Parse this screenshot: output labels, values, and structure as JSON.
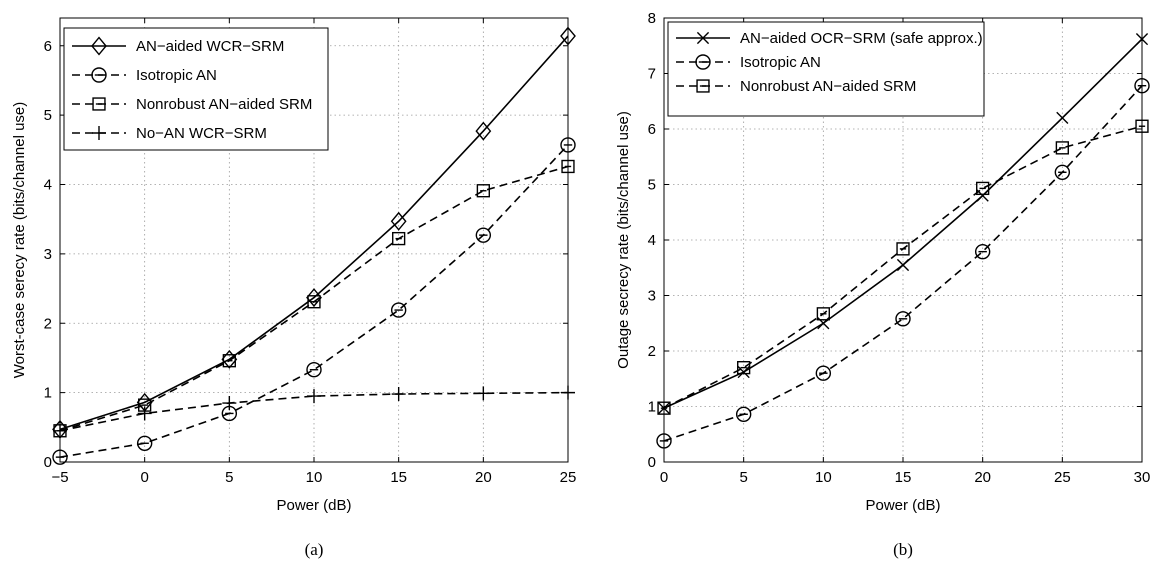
{
  "chart_data": [
    {
      "type": "line",
      "panel_label": "(a)",
      "xlabel": "Power (dB)",
      "ylabel": "Worst-case serecy rate (bits/channel use)",
      "xlim": [
        -5,
        25
      ],
      "ylim": [
        0,
        6.4
      ],
      "xticks": [
        -5,
        0,
        5,
        10,
        15,
        20,
        25
      ],
      "yticks": [
        0,
        1,
        2,
        3,
        4,
        5,
        6
      ],
      "grid": true,
      "legend_position": "top-left",
      "x": [
        -5,
        0,
        5,
        10,
        15,
        20,
        25
      ],
      "series": [
        {
          "name": "AN−aided WCR−SRM",
          "values": [
            0.47,
            0.86,
            1.48,
            2.37,
            3.47,
            4.77,
            6.14
          ],
          "line": "solid",
          "marker": "diamond"
        },
        {
          "name": "Isotropic AN",
          "values": [
            0.07,
            0.27,
            0.7,
            1.33,
            2.19,
            3.27,
            4.57
          ],
          "line": "dashed",
          "marker": "circle-minus"
        },
        {
          "name": "Nonrobust AN−aided SRM",
          "values": [
            0.45,
            0.82,
            1.46,
            2.31,
            3.22,
            3.91,
            4.26
          ],
          "line": "dashed",
          "marker": "square"
        },
        {
          "name": "No−AN WCR−SRM",
          "values": [
            0.45,
            0.7,
            0.85,
            0.95,
            0.98,
            0.99,
            1.0
          ],
          "line": "dashed",
          "marker": "plus"
        }
      ]
    },
    {
      "type": "line",
      "panel_label": "(b)",
      "xlabel": "Power (dB)",
      "ylabel": "Outage secrecy rate (bits/channel use)",
      "xlim": [
        0,
        30
      ],
      "ylim": [
        0,
        8
      ],
      "xticks": [
        0,
        5,
        10,
        15,
        20,
        25,
        30
      ],
      "yticks": [
        0,
        1,
        2,
        3,
        4,
        5,
        6,
        7,
        8
      ],
      "grid": true,
      "legend_position": "top-left",
      "x": [
        0,
        5,
        10,
        15,
        20,
        25,
        30
      ],
      "series": [
        {
          "name": "AN−aided OCR−SRM (safe approx.)",
          "values": [
            0.97,
            1.62,
            2.5,
            3.55,
            4.8,
            6.2,
            7.62
          ],
          "line": "solid",
          "marker": "x"
        },
        {
          "name": "Isotropic AN",
          "values": [
            0.38,
            0.86,
            1.6,
            2.58,
            3.79,
            5.22,
            6.78
          ],
          "line": "dashed",
          "marker": "circle-minus"
        },
        {
          "name": "Nonrobust AN−aided SRM",
          "values": [
            0.97,
            1.7,
            2.67,
            3.84,
            4.93,
            5.66,
            6.05
          ],
          "line": "dashed",
          "marker": "square"
        }
      ]
    }
  ]
}
